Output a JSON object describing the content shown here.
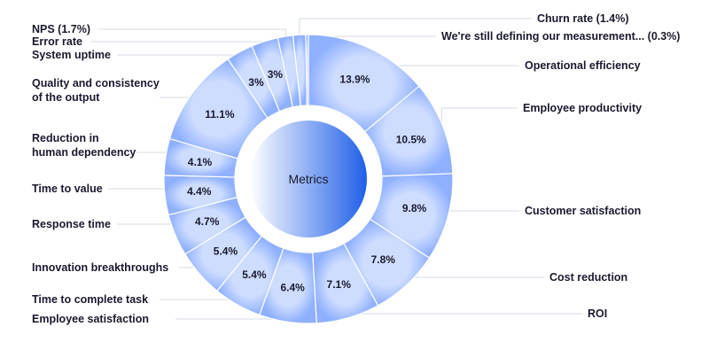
{
  "chart_data": {
    "type": "pie",
    "title": "",
    "center_label": "Metrics",
    "colors": {
      "outer": "#8fb0ff",
      "inner": "#cddcff",
      "center_start": "#ffffff",
      "center_end": "#1f5fe8"
    },
    "slices": [
      {
        "label": "Operational efficiency",
        "value": 13.9,
        "value_label": "13.9%"
      },
      {
        "label": "Employee productivity",
        "value": 10.5,
        "value_label": "10.5%"
      },
      {
        "label": "Customer satisfaction",
        "value": 9.8,
        "value_label": "9.8%"
      },
      {
        "label": "Cost reduction",
        "value": 7.8,
        "value_label": "7.8%"
      },
      {
        "label": "ROI",
        "value": 7.1,
        "value_label": "7.1%"
      },
      {
        "label": "Employee satisfaction",
        "value": 6.4,
        "value_label": "6.4%"
      },
      {
        "label": "Time to complete task",
        "value": 5.4,
        "value_label": "5.4%"
      },
      {
        "label": "Innovation breakthroughs",
        "value": 5.4,
        "value_label": "5.4%"
      },
      {
        "label": "Response time",
        "value": 4.7,
        "value_label": "4.7%"
      },
      {
        "label": "Time to value",
        "value": 4.4,
        "value_label": "4.4%"
      },
      {
        "label": "Reduction in\nhuman dependency",
        "value": 4.1,
        "value_label": "4.1%"
      },
      {
        "label": "Quality and consistency\nof the output",
        "value": 11.1,
        "value_label": "11.1%"
      },
      {
        "label": "System uptime",
        "value": 3.0,
        "value_label": "3%"
      },
      {
        "label": "Error rate",
        "value": 3.0,
        "value_label": "3%"
      },
      {
        "label": "NPS (1.7%)",
        "value": 1.7,
        "value_label": ""
      },
      {
        "label": "Churn rate (1.4%)",
        "value": 1.4,
        "value_label": ""
      },
      {
        "label": "We're still defining our measurement... (0.3%)",
        "value": 0.3,
        "value_label": ""
      }
    ]
  }
}
